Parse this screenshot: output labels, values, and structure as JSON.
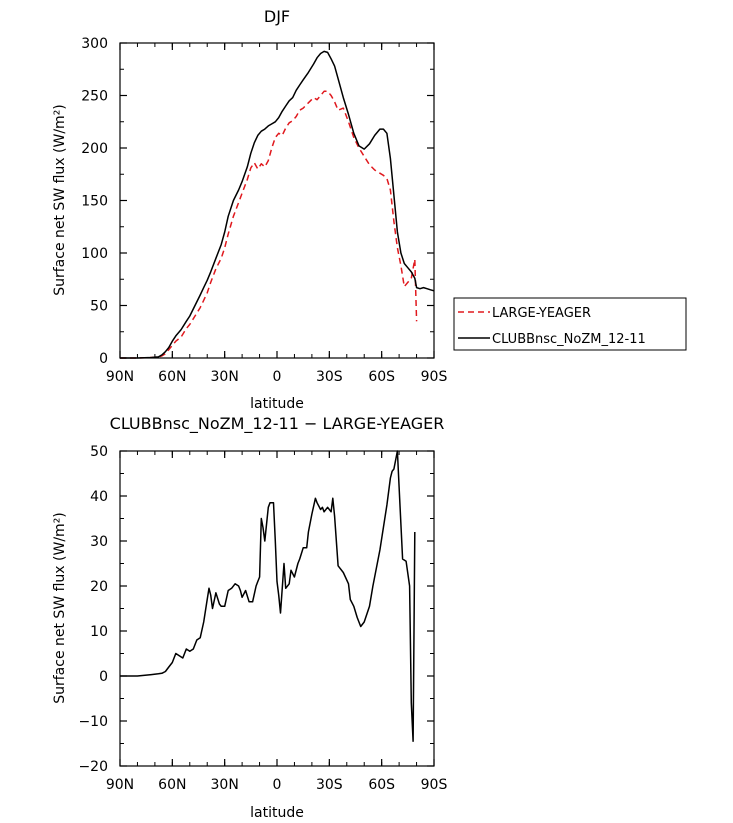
{
  "chart_data": [
    {
      "type": "line",
      "title": "DJF",
      "xlabel": "latitude",
      "ylabel": "Surface net SW flux (W/m²)",
      "xlim": [
        -90,
        90
      ],
      "ylim": [
        0,
        300
      ],
      "xticks": [
        -90,
        -60,
        -30,
        0,
        30,
        60,
        90
      ],
      "xtick_labels": [
        "90N",
        "60N",
        "30N",
        "0",
        "30S",
        "60S",
        "90S"
      ],
      "yticks": [
        0,
        50,
        100,
        150,
        200,
        250,
        300
      ],
      "ytick_labels": [
        "0",
        "50",
        "100",
        "150",
        "200",
        "250",
        "300"
      ],
      "grid": false,
      "legend_position": "right",
      "series": [
        {
          "name": "LARGE-YEAGER",
          "color": "#e0191e",
          "dash": "dashed",
          "x": [
            -90,
            -80,
            -72,
            -68,
            -66,
            -64,
            -62,
            -60,
            -58,
            -55,
            -52,
            -50,
            -47,
            -44,
            -42,
            -40,
            -38,
            -35,
            -32,
            -30,
            -28,
            -25,
            -22,
            -20,
            -17,
            -15,
            -13,
            -11,
            -9,
            -7,
            -5,
            -3,
            -1,
            1,
            3,
            5,
            7,
            9,
            11,
            13,
            15,
            18,
            21,
            23,
            25,
            27,
            29,
            31,
            33,
            35,
            38,
            41,
            44,
            47,
            50,
            53,
            56,
            59,
            61,
            63,
            65,
            67,
            69,
            71,
            73,
            75,
            77,
            79,
            80
          ],
          "y": [
            0,
            0,
            0.5,
            1,
            2,
            4,
            8,
            12,
            16,
            20,
            28,
            32,
            40,
            48,
            55,
            62,
            72,
            85,
            95,
            105,
            118,
            135,
            148,
            157,
            170,
            181,
            186,
            180,
            185,
            182,
            188,
            200,
            210,
            214,
            212,
            219,
            224,
            226,
            230,
            236,
            238,
            243,
            248,
            246,
            250,
            254,
            254,
            250,
            244,
            236,
            238,
            225,
            210,
            200,
            192,
            184,
            179,
            176,
            174,
            171,
            160,
            130,
            105,
            88,
            68,
            72,
            76,
            94,
            35
          ]
        },
        {
          "name": "CLUBBnsc_NoZM_12-11",
          "color": "#000000",
          "dash": "solid",
          "x": [
            -90,
            -80,
            -72,
            -68,
            -66,
            -64,
            -62,
            -60,
            -58,
            -55,
            -52,
            -50,
            -47,
            -44,
            -42,
            -40,
            -38,
            -35,
            -32,
            -30,
            -28,
            -25,
            -22,
            -20,
            -17,
            -15,
            -13,
            -11,
            -9,
            -7,
            -5,
            -3,
            -1,
            1,
            3,
            5,
            7,
            9,
            11,
            13,
            15,
            18,
            21,
            23,
            25,
            27,
            29,
            31,
            33,
            35,
            38,
            41,
            44,
            47,
            50,
            53,
            56,
            59,
            61,
            63,
            65,
            67,
            69,
            71,
            73,
            75,
            77,
            79,
            80,
            82,
            84,
            86,
            88,
            90
          ],
          "y": [
            0,
            0,
            0.5,
            1,
            3,
            6,
            10,
            16,
            21,
            27,
            35,
            40,
            50,
            60,
            67,
            74,
            82,
            95,
            108,
            120,
            135,
            150,
            160,
            168,
            182,
            195,
            205,
            212,
            216,
            218,
            221,
            223,
            225,
            229,
            235,
            240,
            245,
            248,
            255,
            260,
            265,
            272,
            280,
            286,
            290,
            292,
            291,
            285,
            278,
            266,
            248,
            232,
            214,
            202,
            199,
            204,
            212,
            218,
            218,
            214,
            190,
            155,
            120,
            100,
            90,
            86,
            82,
            76,
            67,
            66,
            67,
            66,
            65,
            64
          ]
        }
      ]
    },
    {
      "type": "line",
      "title": "CLUBBnsc_NoZM_12-11 − LARGE-YEAGER",
      "xlabel": "latitude",
      "ylabel": "Surface net SW flux (W/m²)",
      "xlim": [
        -90,
        90
      ],
      "ylim": [
        -20,
        50
      ],
      "xticks": [
        -90,
        -60,
        -30,
        0,
        30,
        60,
        90
      ],
      "xtick_labels": [
        "90N",
        "60N",
        "30N",
        "0",
        "30S",
        "60S",
        "90S"
      ],
      "yticks": [
        -20,
        -10,
        0,
        10,
        20,
        30,
        40,
        50
      ],
      "ytick_labels": [
        "−20",
        "−10",
        "0",
        "10",
        "20",
        "30",
        "40",
        "50"
      ],
      "grid": false,
      "series": [
        {
          "color": "#000000",
          "dash": "solid",
          "x": [
            -90,
            -80,
            -72,
            -68,
            -66,
            -64,
            -62,
            -60,
            -58,
            -56,
            -54,
            -52,
            -50,
            -48,
            -46,
            -44,
            -42,
            -40,
            -39,
            -38,
            -37,
            -35,
            -33,
            -32,
            -30,
            -28,
            -26,
            -24,
            -22,
            -21,
            -20,
            -18,
            -16,
            -14,
            -12,
            -11,
            -10,
            -9,
            -8,
            -7,
            -5,
            -4,
            -2,
            -1,
            0,
            1,
            2,
            4,
            5,
            7,
            8,
            10,
            12,
            13,
            15,
            17,
            18,
            20,
            22,
            23,
            25,
            26,
            27,
            29,
            31,
            32,
            33,
            35,
            38,
            41,
            42,
            44,
            46,
            48,
            50,
            53,
            55,
            57,
            59,
            61,
            63,
            65,
            66,
            67,
            69,
            70,
            72,
            74,
            76,
            77,
            78,
            79
          ],
          "y": [
            0,
            0,
            0.3,
            0.5,
            0.6,
            1,
            2,
            3,
            5,
            4.5,
            4,
            6,
            5.5,
            6,
            8,
            8.5,
            12,
            17,
            19.5,
            18,
            15,
            18.5,
            16,
            15.5,
            15.5,
            19,
            19.5,
            20.5,
            20,
            19,
            17.5,
            19,
            16.5,
            16.5,
            20,
            21,
            22,
            35,
            33,
            30,
            37.5,
            38.5,
            38.5,
            30,
            21,
            18,
            14,
            25,
            19.5,
            20.5,
            23.5,
            22,
            25,
            26,
            28.5,
            28.5,
            32,
            36,
            39.5,
            38.5,
            37,
            37.5,
            36.5,
            37.5,
            36.5,
            39.5,
            35.5,
            24.5,
            23,
            20.5,
            17,
            15.5,
            13,
            11,
            12,
            15.5,
            20,
            24,
            28,
            33,
            38,
            44,
            45.5,
            46,
            50,
            42,
            26,
            25.5,
            20,
            -6,
            -14.5,
            32
          ]
        }
      ]
    }
  ]
}
